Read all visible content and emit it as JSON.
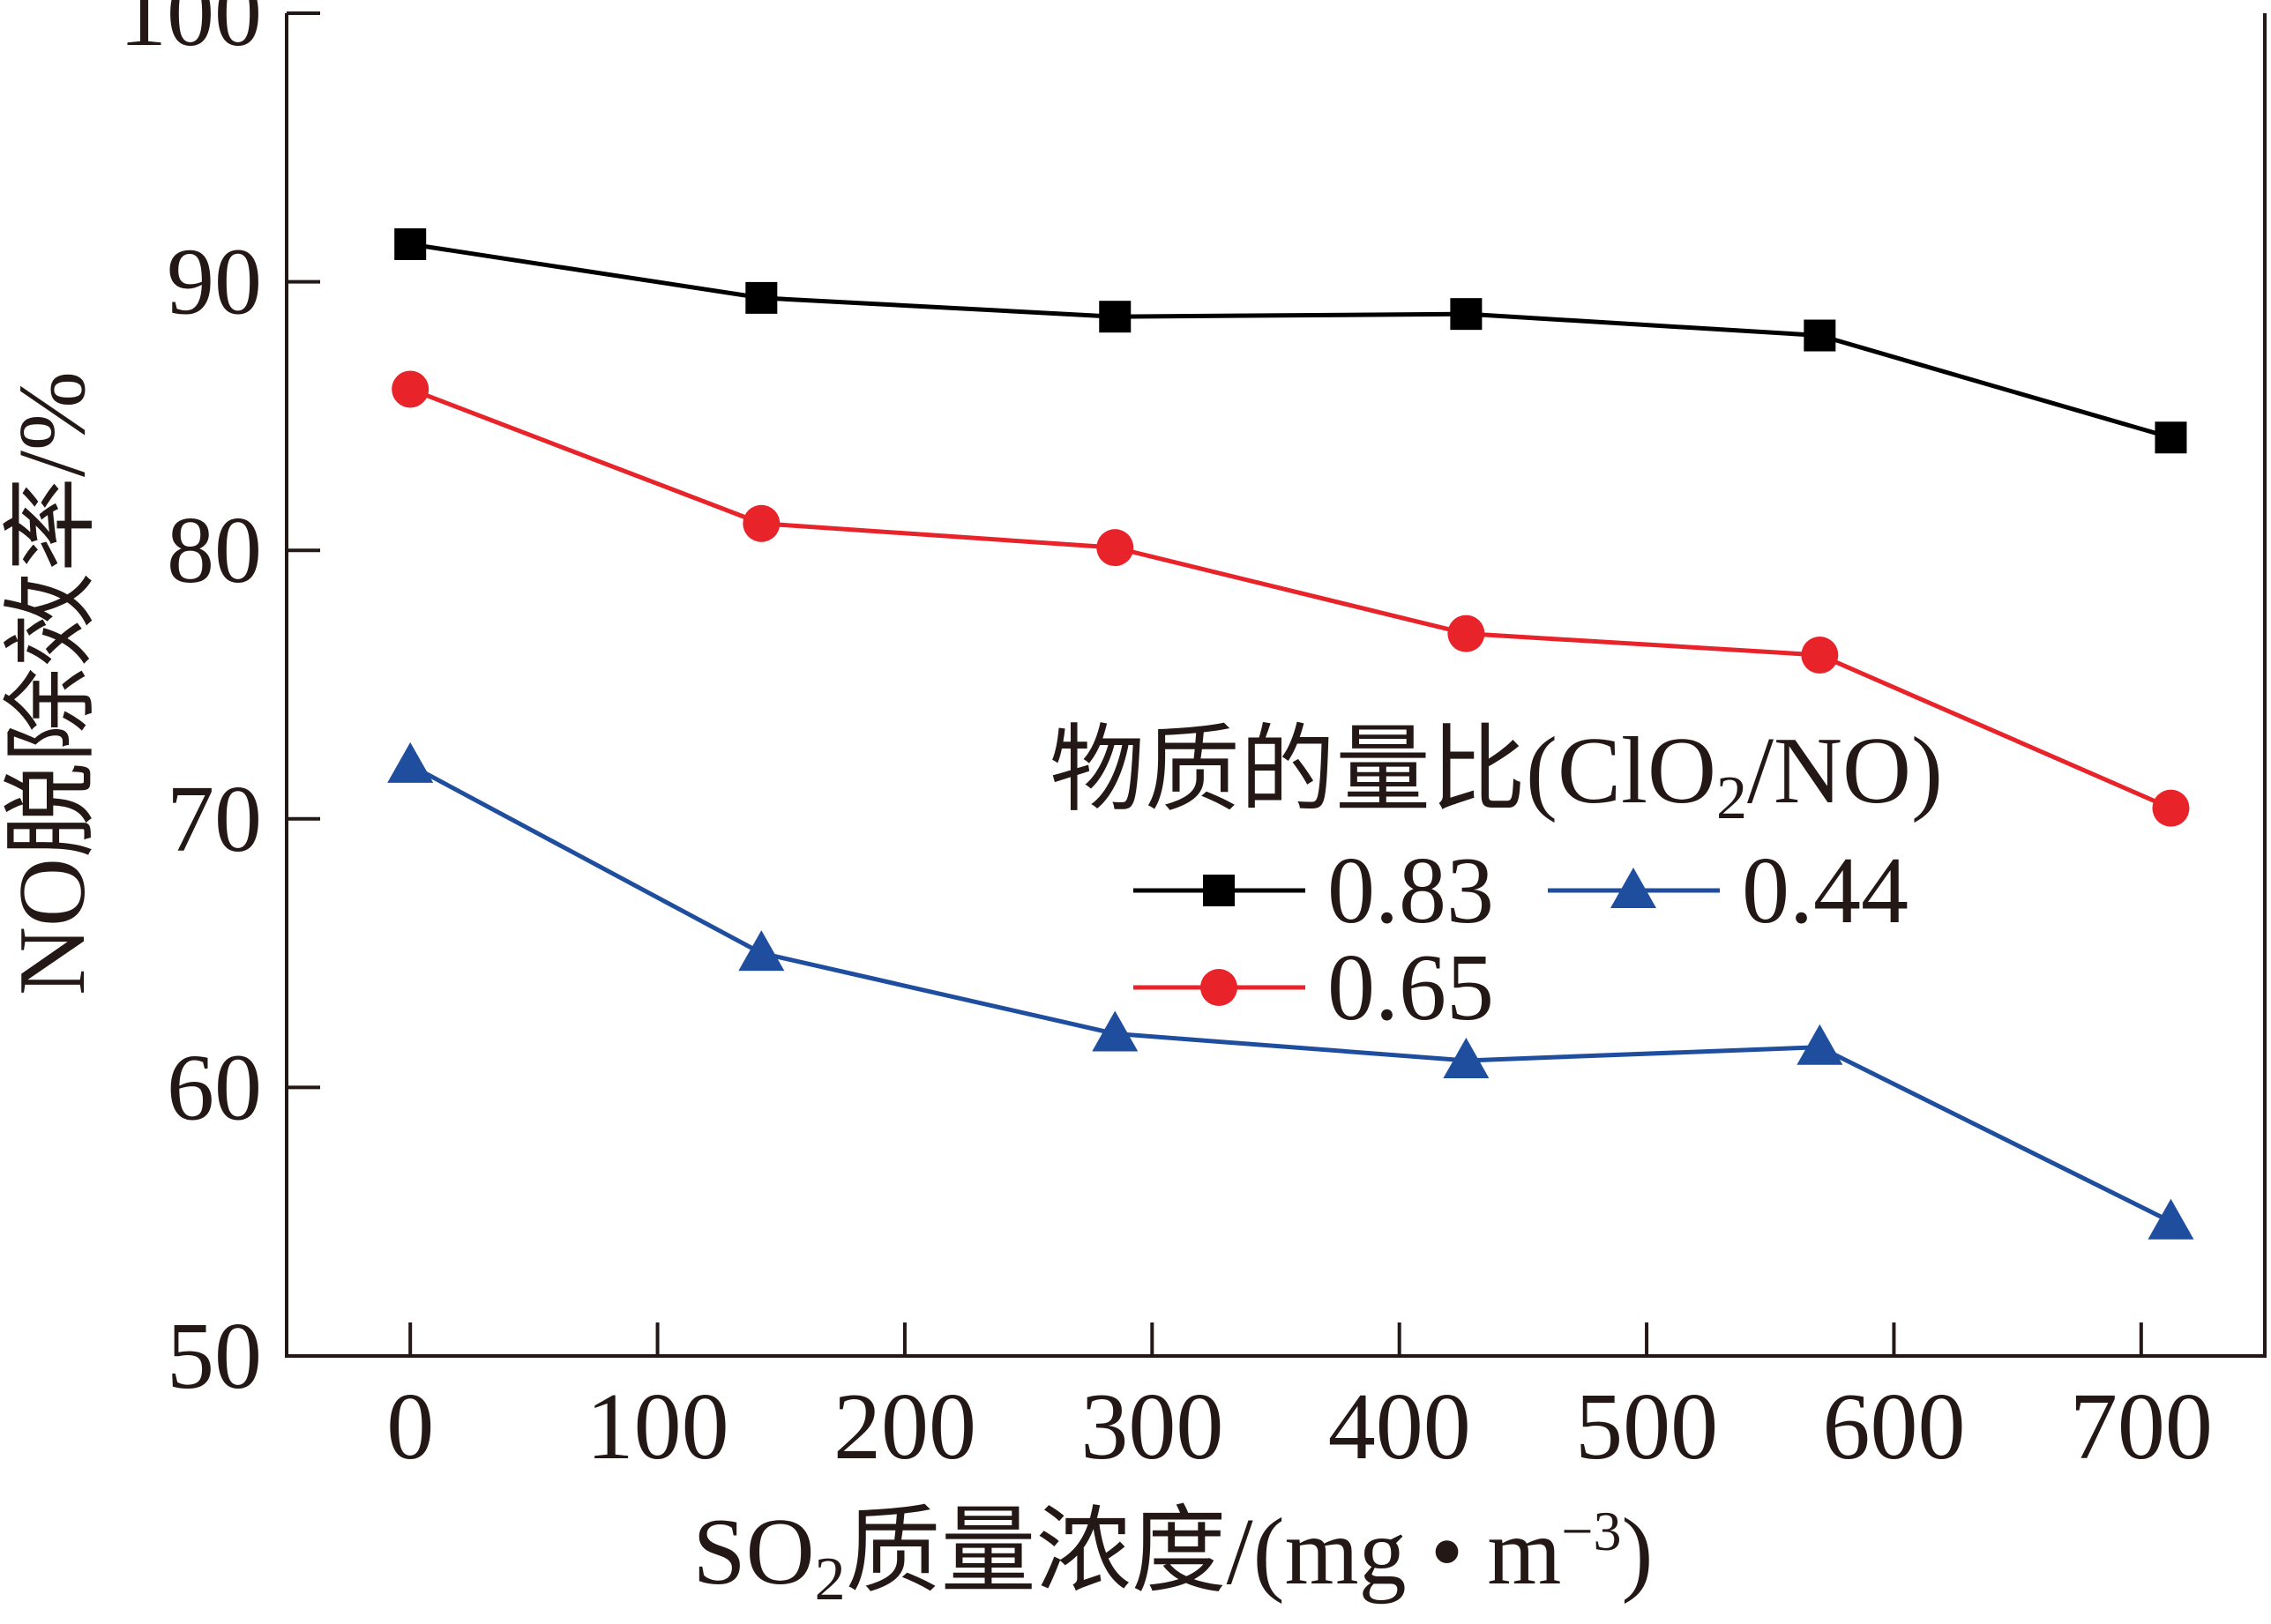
{
  "chart_data": {
    "type": "line",
    "xlabel": {
      "prefix": "SO",
      "sub": "2",
      "rest": "质量浓度/(mg • m",
      "sup": "−3",
      "suffix": ")"
    },
    "ylabel": "NO脱除效率/%",
    "xlim": [
      -50,
      750
    ],
    "ylim": [
      50,
      100
    ],
    "xticks": [
      0,
      100,
      200,
      300,
      400,
      500,
      600,
      700
    ],
    "yticks": [
      50,
      60,
      70,
      80,
      90,
      100
    ],
    "grid": false,
    "legend": {
      "title": {
        "prefix": "物质的量比(ClO",
        "sub": "2",
        "suffix": "/NO)"
      },
      "position": "center-right"
    },
    "x": [
      0,
      142,
      285,
      427,
      570,
      712
    ],
    "series": [
      {
        "name": "0.83",
        "color": "#000000",
        "marker": "square",
        "values": [
          91.4,
          89.4,
          88.7,
          88.8,
          88.0,
          84.2
        ]
      },
      {
        "name": "0.65",
        "color": "#e8232a",
        "marker": "circle",
        "values": [
          86.0,
          81.0,
          80.1,
          76.9,
          76.1,
          70.4
        ]
      },
      {
        "name": "0.44",
        "color": "#1f4e9f",
        "marker": "triangle",
        "values": [
          72.0,
          65.0,
          62.0,
          61.0,
          61.5,
          55.0
        ]
      }
    ]
  }
}
